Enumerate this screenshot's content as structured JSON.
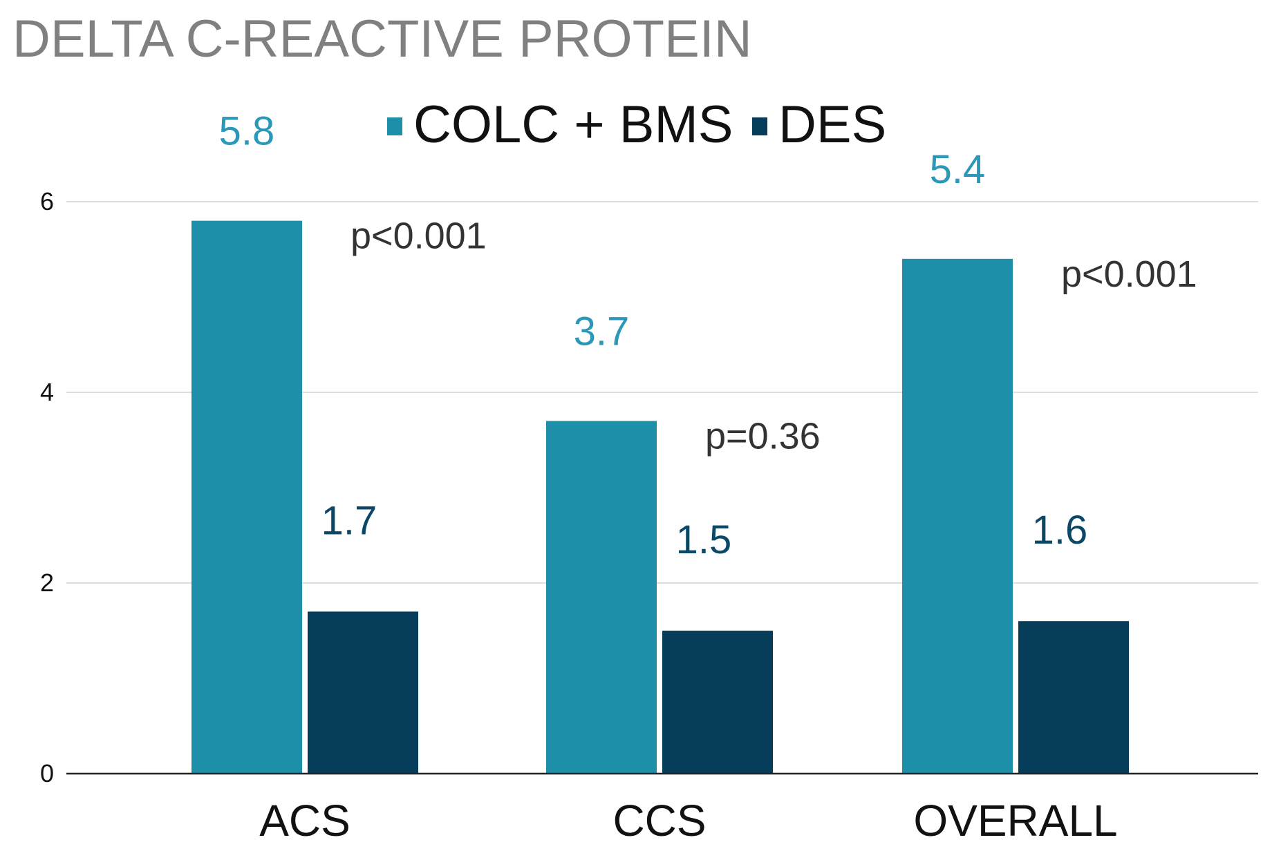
{
  "chart_data": {
    "type": "bar",
    "title": "DELTA C-REACTIVE PROTEIN",
    "categories": [
      "ACS",
      "CCS",
      "OVERALL"
    ],
    "series": [
      {
        "name": "COLC + BMS",
        "color": "#1e8fa8",
        "label_color": "#2a98b8",
        "values": [
          5.8,
          3.7,
          5.4
        ],
        "value_labels": [
          "5.8",
          "3.7",
          "5.4"
        ]
      },
      {
        "name": "DES",
        "color": "#053d5a",
        "label_color": "#0a4866",
        "values": [
          1.7,
          1.5,
          1.6
        ],
        "value_labels": [
          "1.7",
          "1.5",
          "1.6"
        ]
      }
    ],
    "p_values": [
      "p<0.001",
      "p=0.36",
      "p<0.001"
    ],
    "yticks": [
      "0",
      "2",
      "4",
      "6"
    ],
    "ylim": [
      0,
      6
    ],
    "grid": true,
    "legend_position": "top-center",
    "xlabel": "",
    "ylabel": ""
  }
}
